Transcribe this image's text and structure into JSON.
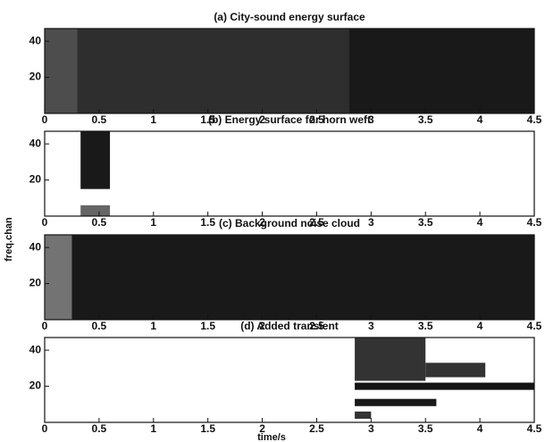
{
  "chart_data": [
    {
      "type": "spectrogram",
      "title": "(a) City-sound energy surface",
      "xlim": [
        0,
        4.5
      ],
      "xticks": [
        0,
        0.5,
        1,
        1.5,
        2,
        2.5,
        3,
        3.5,
        4,
        4.5
      ],
      "ylim": [
        0,
        47
      ],
      "yticks": [
        20,
        40
      ],
      "regions": [
        {
          "x": [
            0,
            4.5
          ],
          "y": [
            0,
            47
          ],
          "intensity": 0.7
        },
        {
          "x": [
            0.3,
            4.5
          ],
          "y": [
            0,
            47
          ],
          "intensity": 0.82
        },
        {
          "x": [
            2.8,
            4.5
          ],
          "y": [
            0,
            47
          ],
          "intensity": 0.9
        }
      ]
    },
    {
      "type": "spectrogram",
      "title": "(b) Energy surface for horn weft",
      "xlim": [
        0,
        4.5
      ],
      "xticks": [
        0,
        0.5,
        1,
        1.5,
        2,
        2.5,
        3,
        3.5,
        4,
        4.5
      ],
      "ylim": [
        0,
        47
      ],
      "yticks": [
        20,
        40
      ],
      "regions": [
        {
          "x": [
            0.33,
            0.6
          ],
          "y": [
            15,
            47
          ],
          "intensity": 0.9
        },
        {
          "x": [
            0.33,
            0.6
          ],
          "y": [
            0,
            6
          ],
          "intensity": 0.6
        }
      ]
    },
    {
      "type": "spectrogram",
      "title": "(c) Background noise cloud",
      "ylabel": "freq.chan",
      "xlim": [
        0,
        4.5
      ],
      "xticks": [
        0,
        0.5,
        1,
        1.5,
        2,
        2.5,
        3,
        3.5,
        4,
        4.5
      ],
      "ylim": [
        0,
        47
      ],
      "yticks": [
        20,
        40
      ],
      "regions": [
        {
          "x": [
            0,
            4.5
          ],
          "y": [
            0,
            47
          ],
          "intensity": 0.55
        },
        {
          "x": [
            0.25,
            4.5
          ],
          "y": [
            0,
            47
          ],
          "intensity": 0.9
        }
      ]
    },
    {
      "type": "spectrogram",
      "title": "(d) Added transient",
      "xlabel": "time/s",
      "xlim": [
        0,
        4.5
      ],
      "xticks": [
        0,
        0.5,
        1,
        1.5,
        2,
        2.5,
        3,
        3.5,
        4,
        4.5
      ],
      "ylim": [
        0,
        47
      ],
      "yticks": [
        20,
        40
      ],
      "regions": [
        {
          "x": [
            2.85,
            3.5
          ],
          "y": [
            23,
            47
          ],
          "intensity": 0.8
        },
        {
          "x": [
            3.5,
            4.05
          ],
          "y": [
            25,
            33
          ],
          "intensity": 0.8
        },
        {
          "x": [
            2.85,
            4.5
          ],
          "y": [
            18,
            22
          ],
          "intensity": 0.92
        },
        {
          "x": [
            2.85,
            3.6
          ],
          "y": [
            9,
            13
          ],
          "intensity": 0.9
        },
        {
          "x": [
            2.85,
            3.0
          ],
          "y": [
            2,
            6
          ],
          "intensity": 0.8
        }
      ]
    }
  ]
}
